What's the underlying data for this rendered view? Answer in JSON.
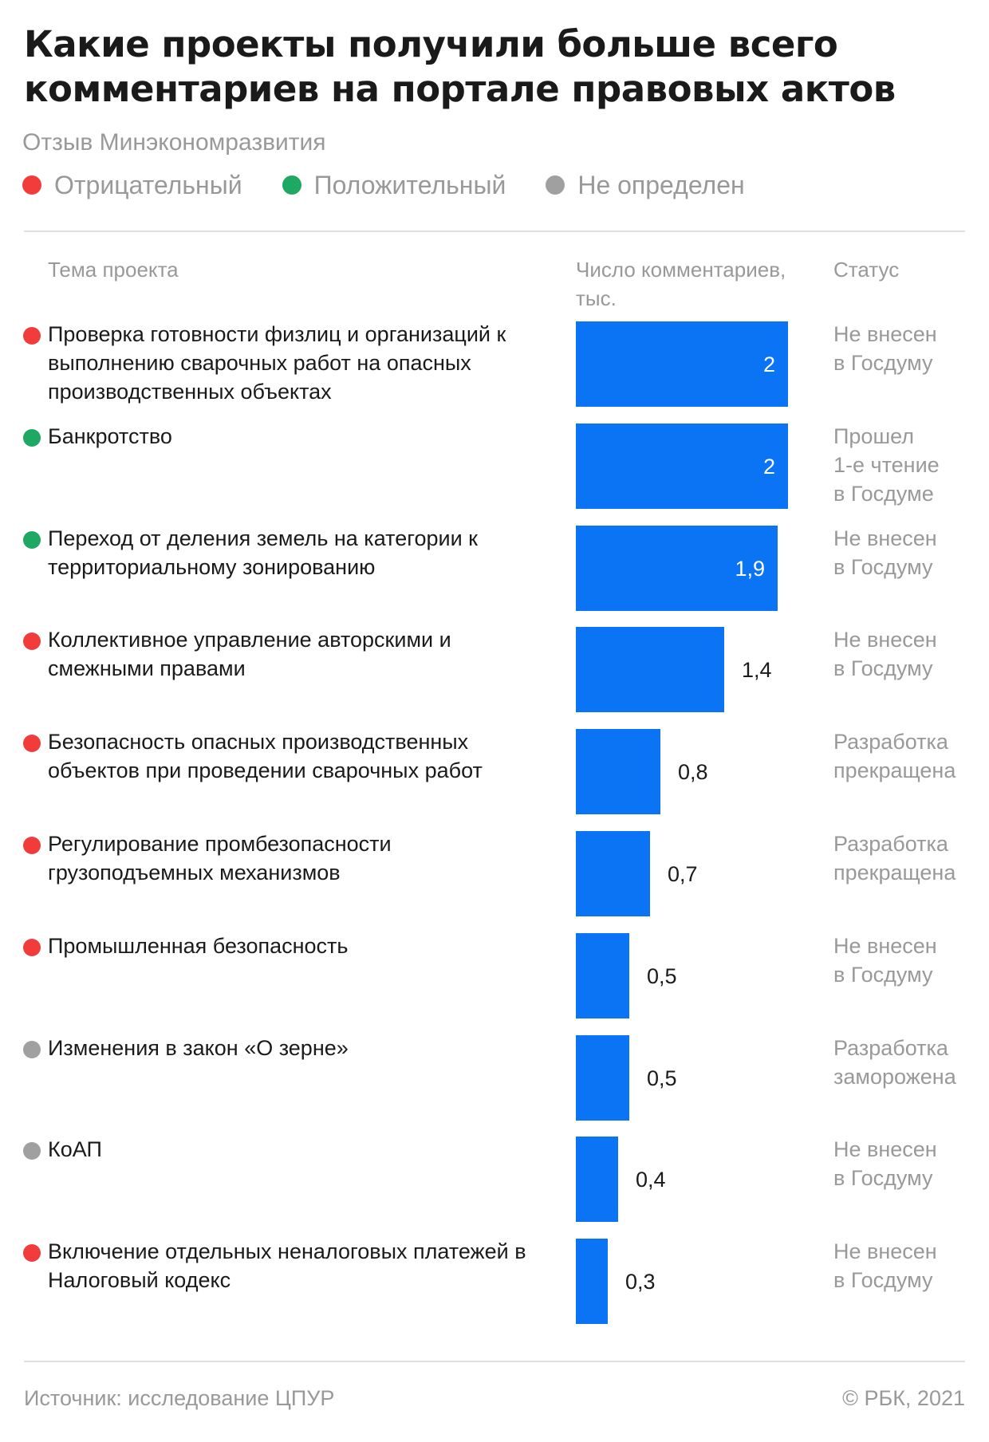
{
  "header": {
    "title": "Какие проекты получили больше всего комментариев на портале правовых актов",
    "subtitle": "Отзыв Минэкономразвития"
  },
  "legend": [
    {
      "label": "Отрицательный",
      "color": "#f23c3c"
    },
    {
      "label": "Положительный",
      "color": "#1fa864"
    },
    {
      "label": "Не определен",
      "color": "#a0a0a0"
    }
  ],
  "columns": {
    "topic": "Тема проекта",
    "count": "Число комментариев, тыс.",
    "status": "Статус"
  },
  "chart_data": {
    "type": "bar",
    "orientation": "horizontal",
    "title": "Какие проекты получили больше всего комментариев на портале правовых актов",
    "subtitle": "Отзыв Минэкономразвития",
    "xlabel": "Число комментариев, тыс.",
    "xlim": [
      0,
      2.7
    ],
    "bar_color": "#0a74f5",
    "grid": false,
    "rows": [
      {
        "topic": "Проверка готовности физлиц и организаций к выполнению сварочных работ на опасных производственных объектах",
        "value": 2,
        "value_label": "2",
        "review": "Отрицательный",
        "status": "Не внесен\nв Госдуму"
      },
      {
        "topic": "Банкротство",
        "value": 2,
        "value_label": "2",
        "review": "Положительный",
        "status": "Прошел\n1-е чтение\nв Госдуме"
      },
      {
        "topic": "Переход от деления земель на категории к территориальному зонированию",
        "value": 1.9,
        "value_label": "1,9",
        "review": "Положительный",
        "status": "Не внесен\nв Госдуму"
      },
      {
        "topic": "Коллективное управление авторскими и смежными правами",
        "value": 1.4,
        "value_label": "1,4",
        "review": "Отрицательный",
        "status": "Не внесен\nв Госдуму"
      },
      {
        "topic": "Безопасность опасных производственных объектов при проведении сварочных работ",
        "value": 0.8,
        "value_label": "0,8",
        "review": "Отрицательный",
        "status": "Разработка\nпрекращена"
      },
      {
        "topic": "Регулирование промбезопасности грузоподъемных механизмов",
        "value": 0.7,
        "value_label": "0,7",
        "review": "Отрицательный",
        "status": "Разработка\nпрекращена"
      },
      {
        "topic": "Промышленная безопасность",
        "value": 0.5,
        "value_label": "0,5",
        "review": "Отрицательный",
        "status": "Не внесен\nв Госдуму"
      },
      {
        "topic": "Изменения в закон «О зерне»",
        "value": 0.5,
        "value_label": "0,5",
        "review": "Не определен",
        "status": "Разработка\nзаморожена"
      },
      {
        "topic": "КоАП",
        "value": 0.4,
        "value_label": "0,4",
        "review": "Не определен",
        "status": "Не внесен\nв Госдуму"
      },
      {
        "topic": "Включение отдельных неналоговых платежей в Налоговый кодекс",
        "value": 0.3,
        "value_label": "0,3",
        "review": "Отрицательный",
        "status": "Не внесен\nв Госдуму"
      }
    ]
  },
  "footer": {
    "source": "Источник: исследование ЦПУР",
    "copyright": "© РБК, 2021"
  }
}
